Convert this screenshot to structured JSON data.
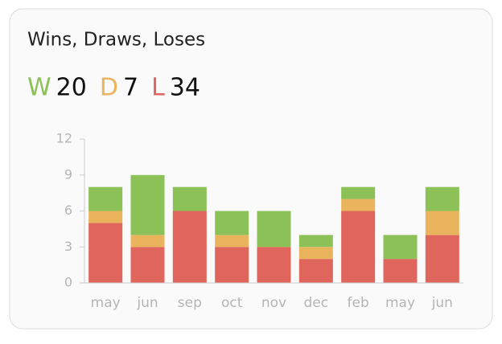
{
  "chart_data": {
    "type": "stacked-bar",
    "title": "Wins, Draws, Loses",
    "categories": [
      "may",
      "jun",
      "sep",
      "oct",
      "nov",
      "dec",
      "feb",
      "may",
      "jun"
    ],
    "series": [
      {
        "name": "W",
        "color": "#8bc157",
        "total": 20,
        "values": [
          2,
          5,
          2,
          2,
          3,
          1,
          1,
          2,
          2
        ]
      },
      {
        "name": "D",
        "color": "#e9b45b",
        "total": 7,
        "values": [
          1,
          1,
          0,
          1,
          0,
          1,
          1,
          0,
          2
        ]
      },
      {
        "name": "L",
        "color": "#df655d",
        "total": 34,
        "values": [
          5,
          3,
          6,
          3,
          3,
          2,
          6,
          2,
          4
        ]
      }
    ],
    "ylim": [
      0,
      12
    ],
    "yticks": [
      0,
      3,
      6,
      9,
      12
    ],
    "grid": false
  }
}
